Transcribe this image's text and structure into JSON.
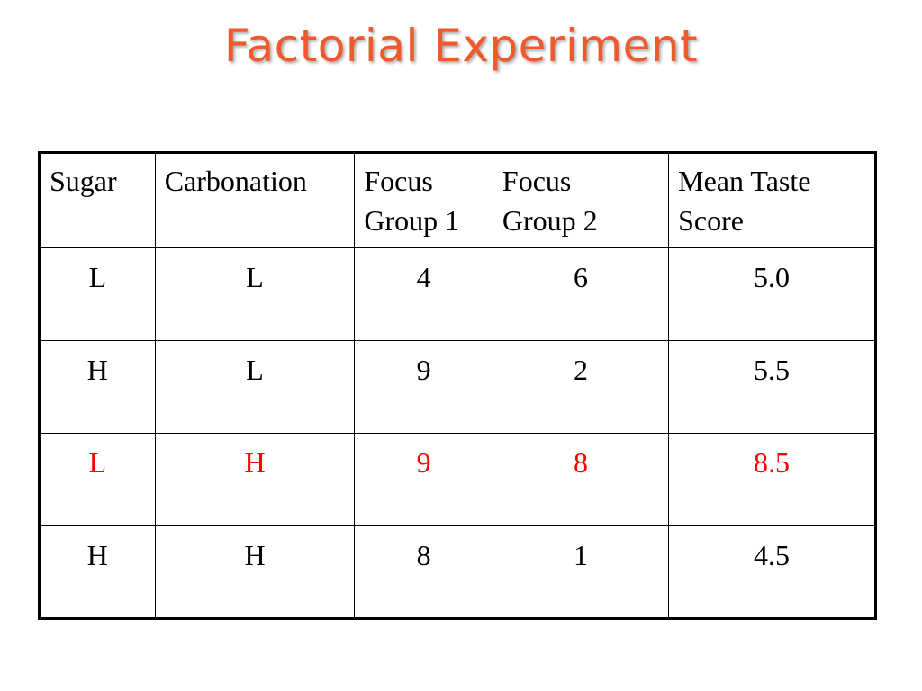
{
  "slide": {
    "title": "Factorial Experiment"
  },
  "colors": {
    "title": "#f0592b",
    "highlight_row": "#ff0000",
    "text": "#000000"
  },
  "table": {
    "headers": [
      {
        "line1": "Sugar",
        "line2": ""
      },
      {
        "line1": "Carbonation",
        "line2": ""
      },
      {
        "line1": "Focus",
        "line2": "Group 1"
      },
      {
        "line1": "Focus",
        "line2": "Group 2"
      },
      {
        "line1": "Mean Taste",
        "line2": "Score"
      }
    ],
    "rows": [
      {
        "sugar": "L",
        "carbonation": "L",
        "group1": "4",
        "group2": "6",
        "mean": "5.0",
        "highlighted": false
      },
      {
        "sugar": "H",
        "carbonation": "L",
        "group1": "9",
        "group2": "2",
        "mean": "5.5",
        "highlighted": false
      },
      {
        "sugar": "L",
        "carbonation": "H",
        "group1": "9",
        "group2": "8",
        "mean": "8.5",
        "highlighted": true
      },
      {
        "sugar": "H",
        "carbonation": "H",
        "group1": "8",
        "group2": "1",
        "mean": "4.5",
        "highlighted": false
      }
    ]
  }
}
